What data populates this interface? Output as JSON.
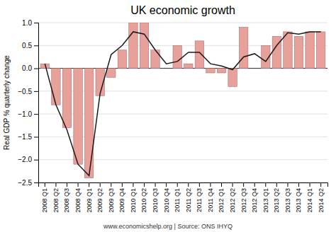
{
  "chart_data": {
    "type": "bar",
    "title": "UK economic growth",
    "ylabel": "Real GDP % quarterly change",
    "annotations": [
      "www.economicshelp.org | Source: ONS  IHYQ"
    ],
    "categories": [
      "2008 Q1",
      "2008 Q2",
      "2008 Q3",
      "2008 Q4",
      "2009 Q1",
      "2009 Q2",
      "2009 Q3",
      "2009 Q4",
      "2010 Q1",
      "2010 Q2",
      "2010 Q3",
      "2010 Q4",
      "2011 Q1",
      "2011 Q2",
      "2011 Q3",
      "2011 Q4",
      "2012 Q1",
      "2012 Q2",
      "2012 Q3",
      "2012 Q4",
      "2013 Q1",
      "2013 Q2",
      "2013 Q3",
      "2013 Q4",
      "2014 Q1",
      "2014 Q2"
    ],
    "series": [
      {
        "type": "bar",
        "color": "#e8a09a",
        "values": [
          0.1,
          -0.8,
          -1.3,
          -2.1,
          -2.4,
          -0.6,
          -0.2,
          0.4,
          1.0,
          1.0,
          0.4,
          0.0,
          0.5,
          0.1,
          0.6,
          -0.1,
          -0.1,
          -0.4,
          0.9,
          0.0,
          0.5,
          0.7,
          0.8,
          0.7,
          0.8,
          0.8
        ]
      },
      {
        "type": "line",
        "color": "#1a1a1a",
        "values": [
          0.1,
          -0.8,
          -1.35,
          -2.1,
          -2.35,
          -0.55,
          0.3,
          0.5,
          0.8,
          0.75,
          0.4,
          0.1,
          0.15,
          0.35,
          0.35,
          0.1,
          0.05,
          -0.03,
          0.25,
          0.32,
          0.15,
          0.5,
          0.78,
          0.75,
          0.8,
          0.8
        ]
      }
    ],
    "ylim": [
      -2.5,
      1.0
    ],
    "yticks": [
      {
        "value": -2.5,
        "label": "−2.5"
      },
      {
        "value": -2.0,
        "label": "−2.0"
      },
      {
        "value": -1.5,
        "label": "−1.5"
      },
      {
        "value": -1.0,
        "label": "−1.0"
      },
      {
        "value": -0.5,
        "label": "−0.5"
      },
      {
        "value": 0.0,
        "label": "0.0"
      },
      {
        "value": 0.5,
        "label": "0.5"
      },
      {
        "value": 1.0,
        "label": "1.0"
      }
    ],
    "grid": true
  }
}
